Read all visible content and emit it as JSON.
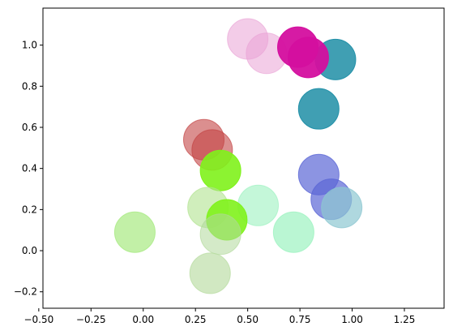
{
  "chart_data": {
    "type": "scatter",
    "title": "",
    "xlabel": "",
    "ylabel": "",
    "xlim": [
      -0.48,
      1.44
    ],
    "ylim": [
      -0.28,
      1.18
    ],
    "xticks": [
      -0.5,
      -0.25,
      0.0,
      0.25,
      0.5,
      0.75,
      1.0,
      1.25
    ],
    "xtick_labels": [
      "−0.50",
      "−0.25",
      "0.00",
      "0.25",
      "0.50",
      "0.75",
      "1.00",
      "1.25"
    ],
    "yticks": [
      -0.2,
      0.0,
      0.2,
      0.4,
      0.6,
      0.8,
      1.0
    ],
    "ytick_labels": [
      "−0.2",
      "0.0",
      "0.2",
      "0.4",
      "0.6",
      "0.8",
      "1.0"
    ],
    "grid": false,
    "legend": "none",
    "points": [
      {
        "x": 0.5,
        "y": 1.03,
        "color": "#e9a3d6",
        "alpha": 0.55
      },
      {
        "x": 0.59,
        "y": 0.96,
        "color": "#e9a3d6",
        "alpha": 0.55
      },
      {
        "x": 0.92,
        "y": 0.93,
        "color": "#1e8ea6",
        "alpha": 0.85
      },
      {
        "x": 0.74,
        "y": 0.99,
        "color": "#d40f9f",
        "alpha": 0.95
      },
      {
        "x": 0.79,
        "y": 0.94,
        "color": "#d40f9f",
        "alpha": 0.95
      },
      {
        "x": 0.84,
        "y": 0.69,
        "color": "#1e8ea6",
        "alpha": 0.85
      },
      {
        "x": 0.29,
        "y": 0.54,
        "color": "#c34545",
        "alpha": 0.6
      },
      {
        "x": 0.33,
        "y": 0.49,
        "color": "#c34545",
        "alpha": 0.6
      },
      {
        "x": 0.37,
        "y": 0.39,
        "color": "#7ff21b",
        "alpha": 0.9
      },
      {
        "x": 0.84,
        "y": 0.37,
        "color": "#5b67d6",
        "alpha": 0.7
      },
      {
        "x": 0.9,
        "y": 0.25,
        "color": "#5b67d6",
        "alpha": 0.7
      },
      {
        "x": 0.95,
        "y": 0.21,
        "color": "#8dc7d1",
        "alpha": 0.7
      },
      {
        "x": 0.55,
        "y": 0.22,
        "color": "#9df2c0",
        "alpha": 0.6
      },
      {
        "x": 0.72,
        "y": 0.09,
        "color": "#9df2c0",
        "alpha": 0.7
      },
      {
        "x": 0.31,
        "y": 0.21,
        "color": "#b1e38f",
        "alpha": 0.6
      },
      {
        "x": 0.4,
        "y": 0.15,
        "color": "#7ff21b",
        "alpha": 0.9
      },
      {
        "x": 0.37,
        "y": 0.08,
        "color": "#b1d89a",
        "alpha": 0.55
      },
      {
        "x": -0.04,
        "y": 0.09,
        "color": "#a8ea82",
        "alpha": 0.7
      },
      {
        "x": 0.32,
        "y": -0.11,
        "color": "#b8dca2",
        "alpha": 0.65
      }
    ]
  }
}
